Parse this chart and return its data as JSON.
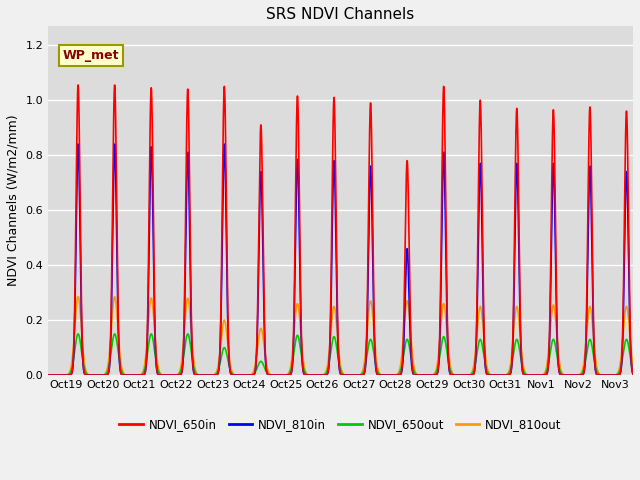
{
  "title": "SRS NDVI Channels",
  "ylabel": "NDVI Channels (W/m2/mm)",
  "annotation": "WP_met",
  "ylim": [
    0.0,
    1.27
  ],
  "bg_color": "#dcdcdc",
  "fig_color": "#f0f0f0",
  "legend_entries": [
    "NDVI_650in",
    "NDVI_810in",
    "NDVI_650out",
    "NDVI_810out"
  ],
  "legend_colors": [
    "#ff0000",
    "#0000ff",
    "#00cc00",
    "#ff9900"
  ],
  "tick_labels": [
    "Oct 19",
    "Oct 20",
    "Oct 21",
    "Oct 22",
    "Oct 23",
    "Oct 24",
    "Oct 25",
    "Oct 26",
    "Oct 27",
    "Oct 28",
    "Oct 29",
    "Oct 30",
    "Oct 31",
    "Nov 1",
    "Nov 2",
    "Nov 3"
  ],
  "peak_650in": [
    1.055,
    1.055,
    1.045,
    1.04,
    1.05,
    0.91,
    1.015,
    1.01,
    0.99,
    0.78,
    1.05,
    1.0,
    0.97,
    0.965,
    0.975,
    0.96
  ],
  "peak_810in": [
    0.84,
    0.84,
    0.83,
    0.81,
    0.84,
    0.74,
    0.785,
    0.78,
    0.76,
    0.46,
    0.81,
    0.77,
    0.77,
    0.77,
    0.76,
    0.74
  ],
  "peak_650out": [
    0.15,
    0.15,
    0.15,
    0.15,
    0.1,
    0.05,
    0.145,
    0.14,
    0.13,
    0.13,
    0.14,
    0.13,
    0.13,
    0.13,
    0.13,
    0.13
  ],
  "peak_810out": [
    0.285,
    0.285,
    0.28,
    0.28,
    0.2,
    0.17,
    0.26,
    0.25,
    0.27,
    0.27,
    0.26,
    0.25,
    0.25,
    0.255,
    0.25,
    0.25
  ],
  "num_days": 16,
  "pulse_sigma_narrow": 0.055,
  "pulse_sigma_wide": 0.09,
  "yticks": [
    0.0,
    0.2,
    0.4,
    0.6,
    0.8,
    1.0,
    1.2
  ]
}
